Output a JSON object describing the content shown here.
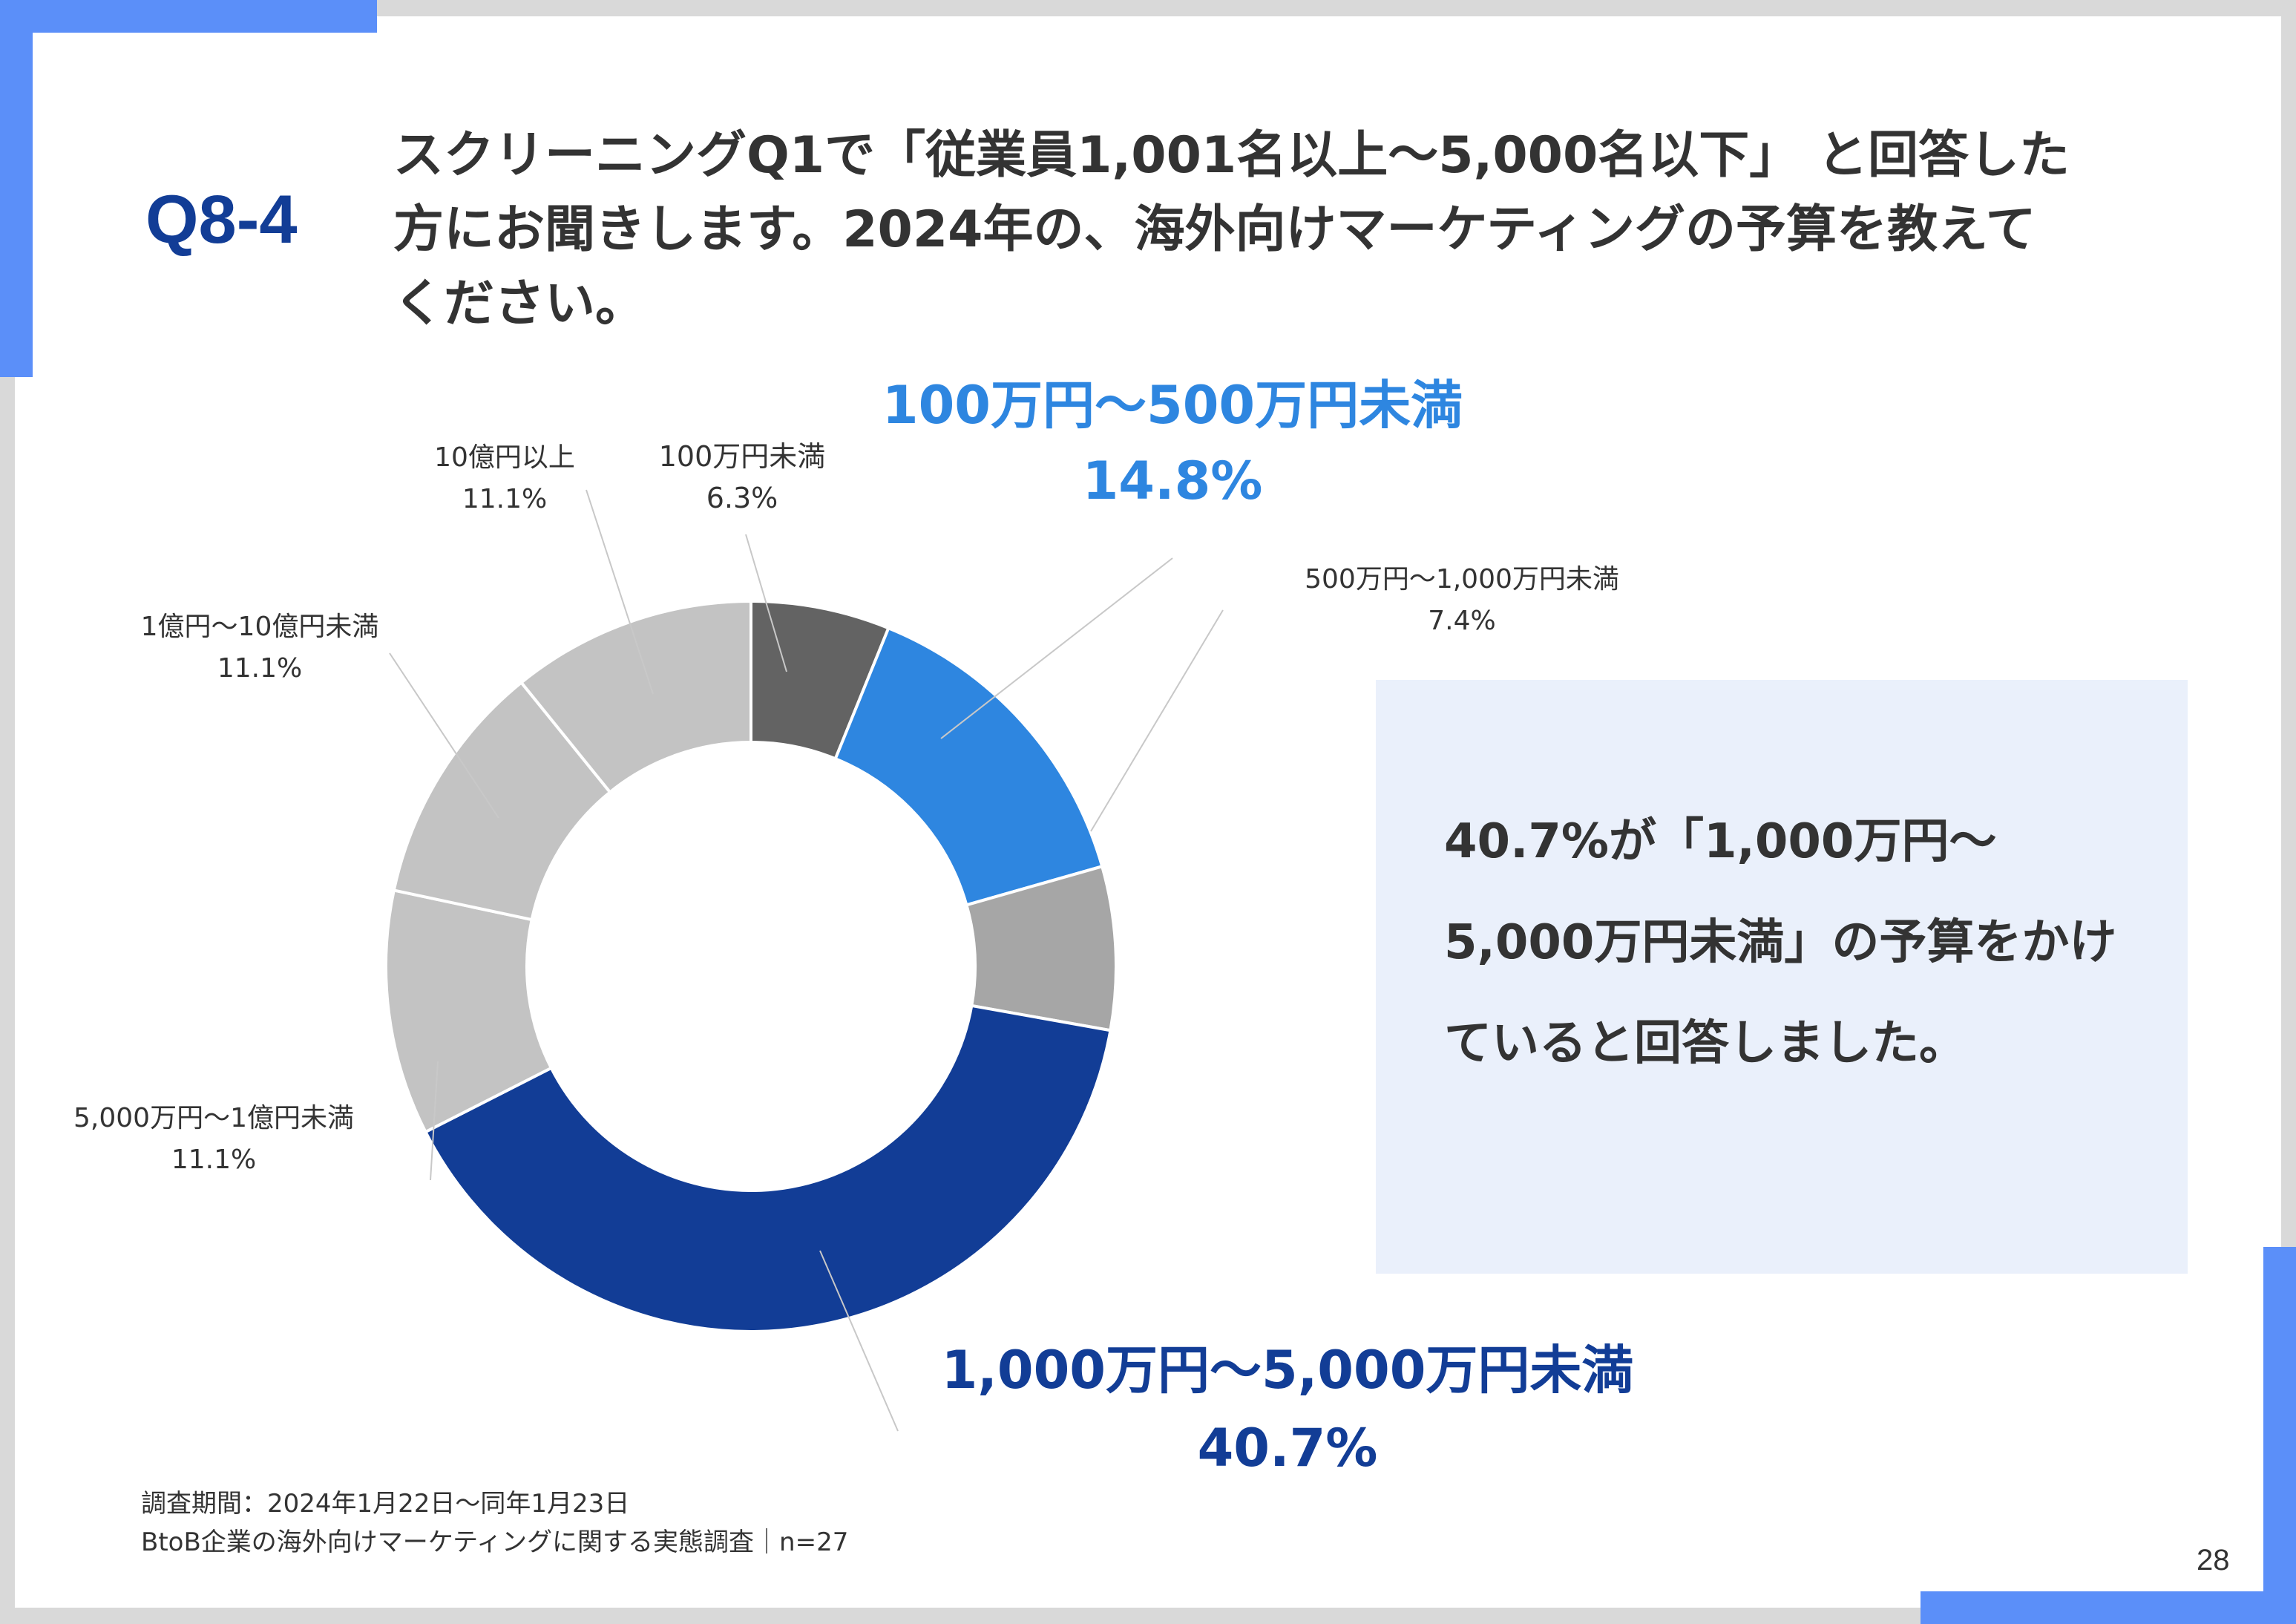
{
  "header": {
    "question_number": "Q8-4",
    "question_text": "スクリーニングQ1で「従業員1,001名以上～5,000名以下」 と回答した方にお聞きします。2024年の、海外向けマーケティングの予算を教えてください。"
  },
  "chart_data": {
    "type": "pie",
    "categories": [
      "100万円未満",
      "100万円～500万円未満",
      "500万円～1,000万円未満",
      "1,000万円～5,000万円未満",
      "5,000万円～1億円未満",
      "1億円～10億円未満",
      "10億円以上"
    ],
    "values": [
      6.3,
      14.8,
      7.4,
      40.7,
      11.1,
      11.1,
      11.1
    ],
    "value_labels": [
      "6.3%",
      "14.8%",
      "7.4%",
      "40.7%",
      "11.1%",
      "11.1%",
      "11.1%"
    ],
    "colors": [
      "#636363",
      "#2e86e0",
      "#a6a6a6",
      "#123d96",
      "#c3c3c3",
      "#c3c3c3",
      "#c3c3c3"
    ],
    "label_colors": [
      "#333333",
      "#2e86e0",
      "#333333",
      "#123d96",
      "#333333",
      "#333333",
      "#333333"
    ],
    "highlighted": [
      false,
      true,
      false,
      true,
      false,
      false,
      false
    ],
    "start": "12 o'clock, clockwise",
    "legend": "none"
  },
  "callout": {
    "text": "40.7%が「1,000万円～5,000万円未満」の予算をかけていると回答しました。"
  },
  "footer": {
    "survey_period": "調査期間：2024年1月22日～同年1月23日",
    "survey_name": "BtoB企業の海外向けマーケティングに関する実態調査｜n=27"
  },
  "page_number": "28"
}
